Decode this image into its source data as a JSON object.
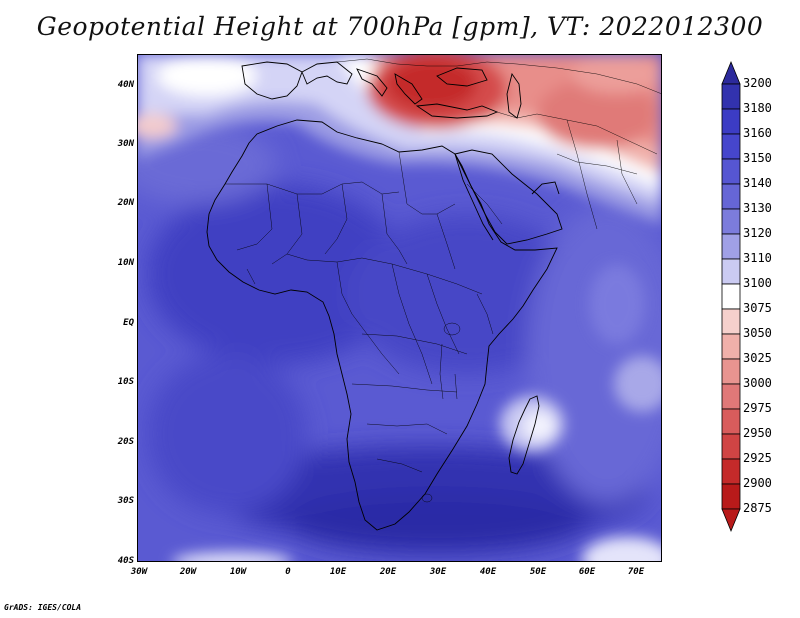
{
  "title": "Geopotential Height at 700hPa [gpm], VT: 2022012300",
  "footer": "GrADS: IGES/COLA",
  "map": {
    "lat_labels": [
      "40N",
      "30N",
      "20N",
      "10N",
      "EQ",
      "10S",
      "20S",
      "30S",
      "40S"
    ],
    "lon_labels": [
      "30W",
      "20W",
      "10W",
      "0",
      "10E",
      "20E",
      "30E",
      "40E",
      "50E",
      "60E",
      "70E"
    ]
  },
  "colorbar": {
    "levels": [
      "3200",
      "3180",
      "3160",
      "3150",
      "3140",
      "3130",
      "3120",
      "3110",
      "3100",
      "3075",
      "3050",
      "3025",
      "3000",
      "2975",
      "2950",
      "2925",
      "2900",
      "2875"
    ],
    "colors": [
      "#2c2a9c",
      "#3232ae",
      "#3c3cc4",
      "#4646cc",
      "#5656d2",
      "#6666d6",
      "#7c7cdc",
      "#a0a0e6",
      "#cbcbf2",
      "#ffffff",
      "#f6d0cc",
      "#f0b0aa",
      "#e89490",
      "#e07878",
      "#d85c5c",
      "#d04444",
      "#c42a2a",
      "#b81a1a"
    ]
  },
  "colors": {
    "deep_blue": "#3434b6",
    "mid_blue": "#5252cc",
    "light_blue": "#b8b8ee",
    "white": "#ffffff",
    "red": "#d33a3a",
    "pink": "#f0a8a4"
  }
}
